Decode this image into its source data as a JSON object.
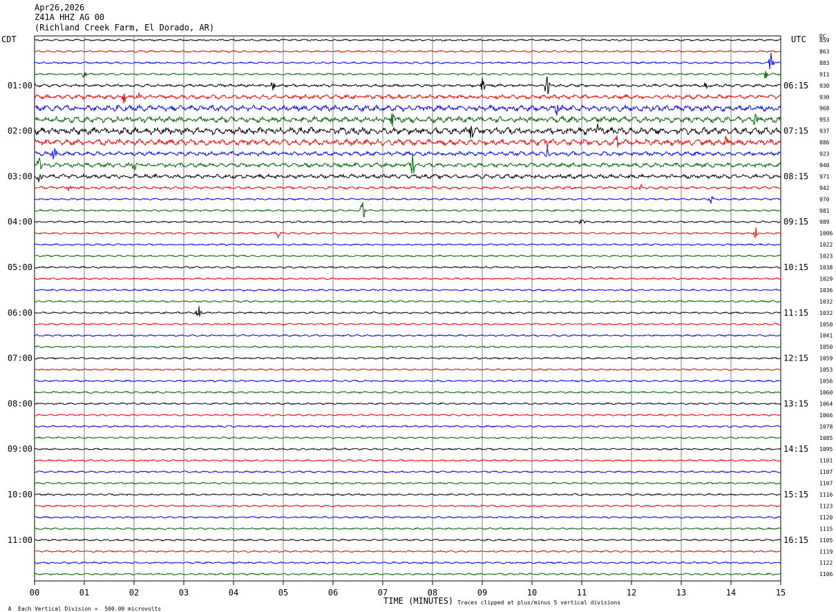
{
  "header": {
    "date": "Apr26,2026",
    "station": "Z41A HHZ AG 00",
    "location": "(Richland Creek Farm, El Dorado, AR)"
  },
  "labels": {
    "left_zone": "CDT",
    "right_zone": "UTC",
    "dc_title": "DC"
  },
  "footer": {
    "division_note": "Each Vertical Division =  500.00 microvolts",
    "time_label": "TIME (MINUTES)",
    "clip_note": "Traces clipped at plus/minus 5 vertical divisions",
    "corner_mark": "A"
  },
  "colors": {
    "trace_cycle": [
      "#000000",
      "#ff0000",
      "#0000ff",
      "#006400"
    ],
    "grid": "#808080"
  },
  "chart_data": {
    "type": "line",
    "title": "",
    "xlabel": "TIME (MINUTES)",
    "x_ticks": [
      "00",
      "01",
      "02",
      "03",
      "04",
      "05",
      "06",
      "07",
      "08",
      "09",
      "10",
      "11",
      "12",
      "13",
      "14",
      "15"
    ],
    "xlim": [
      0,
      15
    ],
    "trace_count": 48,
    "minutes_per_trace": 15,
    "left_hour_labels": [
      "01:00",
      "02:00",
      "03:00",
      "04:00",
      "05:00",
      "06:00",
      "07:00",
      "08:00",
      "09:00",
      "10:00",
      "11:00"
    ],
    "right_hour_labels": [
      "06:15",
      "07:15",
      "08:15",
      "09:15",
      "10:15",
      "11:15",
      "12:15",
      "13:15",
      "14:15",
      "15:15",
      "16:15"
    ],
    "hour_label_first_trace": 4,
    "dc_offsets": [
      859,
      863,
      883,
      911,
      930,
      930,
      968,
      953,
      937,
      886,
      923,
      940,
      971,
      942,
      970,
      981,
      989,
      1006,
      1022,
      1023,
      1038,
      1029,
      1036,
      1032,
      1032,
      1050,
      1041,
      1050,
      1059,
      1053,
      1056,
      1060,
      1064,
      1066,
      1078,
      1085,
      1095,
      1101,
      1107,
      1107,
      1116,
      1123,
      1120,
      1115,
      1105,
      1119,
      1122,
      1106
    ],
    "activity_level": [
      1,
      1,
      1,
      1,
      2,
      3,
      4,
      4,
      5,
      4,
      3,
      3,
      3,
      2,
      1,
      1,
      1,
      1,
      1,
      1,
      1,
      1,
      1,
      1,
      1,
      1,
      1,
      1,
      1,
      1,
      1,
      1,
      1,
      1,
      1,
      1,
      1,
      1,
      1,
      1,
      1,
      1,
      1,
      1,
      1,
      1,
      1,
      1
    ],
    "events": [
      {
        "trace": 2,
        "minute": 14.8,
        "amp": 3.0
      },
      {
        "trace": 3,
        "minute": 1.0,
        "amp": 1.0
      },
      {
        "trace": 3,
        "minute": 14.7,
        "amp": 1.5
      },
      {
        "trace": 4,
        "minute": 4.8,
        "amp": 1.5
      },
      {
        "trace": 4,
        "minute": 9.0,
        "amp": 1.8
      },
      {
        "trace": 4,
        "minute": 10.3,
        "amp": 2.8
      },
      {
        "trace": 4,
        "minute": 13.5,
        "amp": 1.0
      },
      {
        "trace": 5,
        "minute": 1.8,
        "amp": 1.5
      },
      {
        "trace": 5,
        "minute": 2.1,
        "amp": 1.2
      },
      {
        "trace": 6,
        "minute": 10.5,
        "amp": 1.5
      },
      {
        "trace": 7,
        "minute": 7.2,
        "amp": 2.0
      },
      {
        "trace": 7,
        "minute": 14.5,
        "amp": 1.5
      },
      {
        "trace": 8,
        "minute": 8.8,
        "amp": 1.8
      },
      {
        "trace": 8,
        "minute": 11.3,
        "amp": 2.0
      },
      {
        "trace": 9,
        "minute": 10.3,
        "amp": 2.0
      },
      {
        "trace": 9,
        "minute": 11.7,
        "amp": 2.0
      },
      {
        "trace": 9,
        "minute": 13.9,
        "amp": 2.0
      },
      {
        "trace": 10,
        "minute": 0.4,
        "amp": 1.5
      },
      {
        "trace": 10,
        "minute": 10.3,
        "amp": 2.5
      },
      {
        "trace": 11,
        "minute": 0.1,
        "amp": 2.0
      },
      {
        "trace": 11,
        "minute": 2.0,
        "amp": 1.2
      },
      {
        "trace": 11,
        "minute": 7.6,
        "amp": 2.5
      },
      {
        "trace": 12,
        "minute": 0.1,
        "amp": 2.0
      },
      {
        "trace": 13,
        "minute": 0.7,
        "amp": 0.8
      },
      {
        "trace": 13,
        "minute": 12.2,
        "amp": 0.6
      },
      {
        "trace": 14,
        "minute": 13.6,
        "amp": 1.0
      },
      {
        "trace": 15,
        "minute": 6.6,
        "amp": 2.5
      },
      {
        "trace": 16,
        "minute": 11.0,
        "amp": 0.8
      },
      {
        "trace": 17,
        "minute": 4.9,
        "amp": 1.0
      },
      {
        "trace": 17,
        "minute": 14.5,
        "amp": 1.5
      },
      {
        "trace": 24,
        "minute": 3.3,
        "amp": 1.8
      }
    ]
  }
}
